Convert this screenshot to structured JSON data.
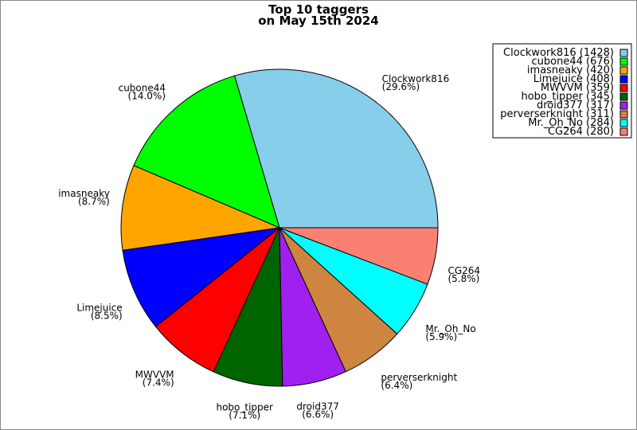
{
  "chart_data": {
    "type": "pie",
    "title": [
      "Top 10 taggers",
      "on May 15th 2024"
    ],
    "start_angle_deg": 0,
    "direction": "counterclockwise",
    "legend_position": "top-right",
    "slices": [
      {
        "name": "Clockwork816",
        "value": 1428,
        "percent_label": "(29.6%)",
        "legend": "Clockwork816 (1428)",
        "color": "#87ceeb"
      },
      {
        "name": "cubone44",
        "value": 676,
        "percent_label": "(14.0%)",
        "legend": "cubone44 (676)",
        "color": "#00ff00"
      },
      {
        "name": "imasneaky",
        "value": 420,
        "percent_label": "(8.7%)",
        "legend": "imasneaky (420)",
        "color": "#ffa500"
      },
      {
        "name": "Limejuice",
        "value": 408,
        "percent_label": "(8.5%)",
        "legend": "Limejuice (408)",
        "color": "#0000ff"
      },
      {
        "name": "MWVVM",
        "value": 359,
        "percent_label": "(7.4%)",
        "legend": "MWVVM (359)",
        "color": "#ff0000"
      },
      {
        "name": "hobo_tipper",
        "value": 345,
        "percent_label": "(7.1%)",
        "legend": "hobo_tipper (345)",
        "color": "#006400"
      },
      {
        "name": "droid377",
        "value": 317,
        "percent_label": "(6.6%)",
        "legend": "droid377 (317)",
        "color": "#a020f0"
      },
      {
        "name": "perverserknight",
        "value": 311,
        "percent_label": "(6.4%)",
        "legend": "perverserknight (311)",
        "color": "#cd853f"
      },
      {
        "name": "Mr._Oh_No",
        "value": 284,
        "percent_label": "(5.9%)",
        "legend": "Mr._Oh_No (284)",
        "color": "#00ffff"
      },
      {
        "name": "CG264",
        "value": 280,
        "percent_label": "(5.8%)",
        "legend": "CG264 (280)",
        "color": "#fa8072"
      }
    ]
  }
}
